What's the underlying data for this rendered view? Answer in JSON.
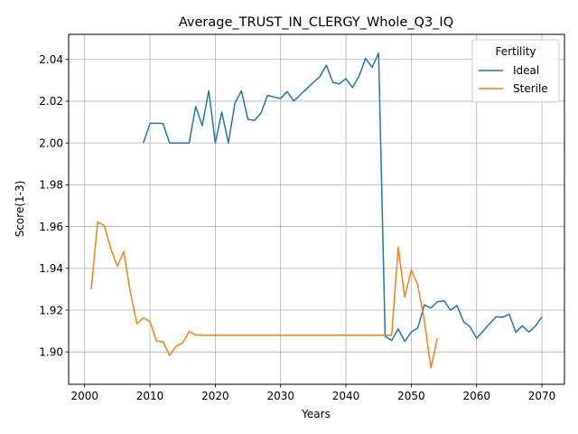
{
  "chart_data": {
    "type": "line",
    "title": "Average_TRUST_IN_CLERGY_Whole_Q3_IQ",
    "xlabel": "Years",
    "ylabel": "Score(1-3)",
    "xlim": [
      1997.55,
      2073.45
    ],
    "ylim": [
      1.8845,
      2.052
    ],
    "xticks": [
      2000,
      2010,
      2020,
      2030,
      2040,
      2050,
      2060,
      2070
    ],
    "yticks": [
      1.9,
      1.92,
      1.94,
      1.96,
      1.98,
      2.0,
      2.02,
      2.04
    ],
    "ytick_labels": [
      "1.90",
      "1.92",
      "1.94",
      "1.96",
      "1.98",
      "2.00",
      "2.02",
      "2.04"
    ],
    "grid": true,
    "legend": {
      "title": "Fertility",
      "position": "top-right"
    },
    "series": [
      {
        "name": "Ideal",
        "color": "#1f77b4",
        "x": [
          2009,
          2010,
          2011,
          2012,
          2013,
          2014,
          2015,
          2016,
          2017,
          2018,
          2019,
          2020,
          2021,
          2022,
          2023,
          2024,
          2025,
          2026,
          2027,
          2028,
          2029,
          2030,
          2031,
          2032,
          2033,
          2034,
          2035,
          2036,
          2037,
          2038,
          2039,
          2040,
          2041,
          2042,
          2043,
          2044,
          2045,
          2046,
          2047,
          2048,
          2049,
          2050,
          2051,
          2052,
          2053,
          2054,
          2055,
          2056,
          2057,
          2058,
          2059,
          2060,
          2061,
          2062,
          2063,
          2064,
          2065,
          2066,
          2067,
          2068,
          2069,
          2070
        ],
        "y": [
          2.0,
          2.0094,
          2.0094,
          2.0093,
          2.0,
          2.0,
          2.0,
          2.0,
          2.0175,
          2.0083,
          2.025,
          2.0,
          2.0148,
          2.0,
          2.019,
          2.025,
          2.0113,
          2.0108,
          2.0143,
          2.0228,
          2.022,
          2.0213,
          2.0246,
          2.0201,
          2.023,
          2.026,
          2.029,
          2.0318,
          2.0372,
          2.029,
          2.0283,
          2.0308,
          2.0265,
          2.032,
          2.0405,
          2.0362,
          2.043,
          1.9075,
          1.9055,
          1.911,
          1.905,
          1.9095,
          1.9115,
          1.9225,
          1.921,
          1.924,
          1.9245,
          1.92,
          1.9222,
          1.9145,
          1.912,
          1.9065,
          1.91,
          1.9135,
          1.9168,
          1.9166,
          1.918,
          1.9093,
          1.9125,
          1.9095,
          1.9123,
          1.9168
        ]
      },
      {
        "name": "Sterile",
        "color": "#ff7f0e",
        "x": [
          2001,
          2002,
          2003,
          2004,
          2005,
          2006,
          2007,
          2008,
          2009,
          2010,
          2011,
          2012,
          2013,
          2014,
          2015,
          2016,
          2017,
          2018,
          2019,
          2020,
          2021,
          2022,
          2023,
          2024,
          2025,
          2026,
          2027,
          2028,
          2029,
          2030,
          2031,
          2032,
          2033,
          2034,
          2035,
          2036,
          2037,
          2038,
          2039,
          2040,
          2041,
          2042,
          2043,
          2044,
          2045,
          2046,
          2047,
          2048,
          2049,
          2050,
          2051,
          2052,
          2053,
          2054
        ],
        "y": [
          1.93,
          1.9622,
          1.9604,
          1.9495,
          1.941,
          1.948,
          1.9285,
          1.9135,
          1.9163,
          1.9145,
          1.9052,
          1.9048,
          1.8983,
          1.9027,
          1.9043,
          1.9098,
          1.9081,
          1.908,
          1.908,
          1.908,
          1.908,
          1.908,
          1.908,
          1.908,
          1.908,
          1.908,
          1.908,
          1.908,
          1.908,
          1.908,
          1.908,
          1.908,
          1.908,
          1.908,
          1.908,
          1.908,
          1.908,
          1.908,
          1.908,
          1.908,
          1.908,
          1.908,
          1.908,
          1.908,
          1.908,
          1.908,
          1.908,
          1.95,
          1.9262,
          1.9392,
          1.932,
          1.915,
          1.8923,
          1.9065
        ]
      }
    ]
  }
}
